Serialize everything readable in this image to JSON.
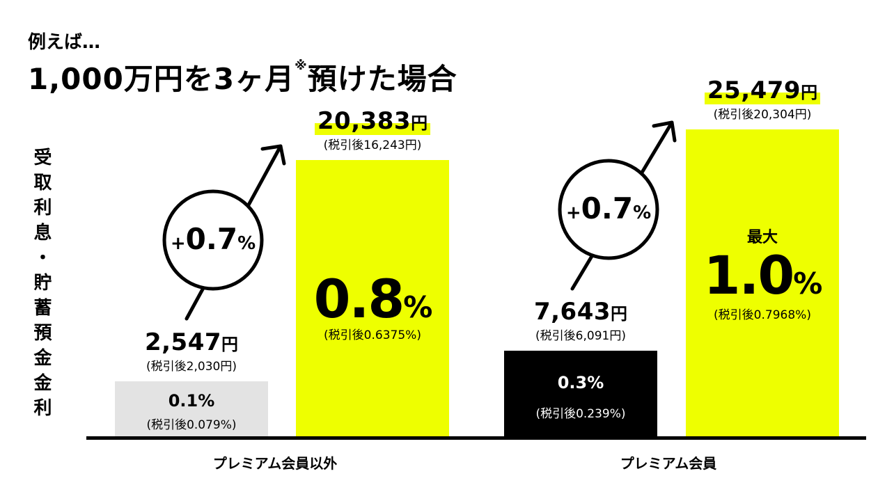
{
  "header": {
    "subtitle": "例えば…",
    "title_main": "1,000万円を3ヶ月",
    "title_note_mark": "※",
    "title_end": "預けた場合"
  },
  "y_axis_label": "受取利息・貯蓄預金金利",
  "colors": {
    "gray_bar": "#e3e3e3",
    "yellow_bar": "#eeff00",
    "black_bar": "#000000",
    "highlight": "#eeff00"
  },
  "chart_data": {
    "type": "bar",
    "categories": [
      "プレミアム会員以外",
      "プレミアム会員"
    ],
    "ylim": [
      0,
      1.0
    ],
    "grid": false,
    "bars": [
      {
        "group": "プレミアム会員以外",
        "rate": 0.1,
        "rate_label": "0.1%",
        "rate_after_tax_label": "(税引後0.079%)",
        "interest_num": "2,547",
        "interest_after_tax_label": "(税引後2,030円)",
        "color": "#e3e3e3",
        "prefix": ""
      },
      {
        "group": "プレミアム会員以外",
        "rate": 0.8,
        "rate_label": "0.8",
        "rate_after_tax_label": "(税引後0.6375%)",
        "interest_num": "20,383",
        "interest_after_tax_label": "(税引後16,243円)",
        "color": "#eeff00",
        "prefix": ""
      },
      {
        "group": "プレミアム会員",
        "rate": 0.3,
        "rate_label": "0.3%",
        "rate_after_tax_label": "(税引後0.239%)",
        "interest_num": "7,643",
        "interest_after_tax_label": "(税引後6,091円)",
        "color": "#000000",
        "prefix": ""
      },
      {
        "group": "プレミアム会員",
        "rate": 1.0,
        "rate_label": "1.0",
        "rate_after_tax_label": "(税引後0.7968%)",
        "interest_num": "25,479",
        "interest_after_tax_label": "(税引後20,304円)",
        "color": "#eeff00",
        "prefix": "最大"
      }
    ],
    "yen_unit": "円",
    "percent_unit": "%",
    "annotations": [
      {
        "plus": "+",
        "value": "0.7",
        "unit": "%"
      },
      {
        "plus": "+",
        "value": "0.7",
        "unit": "%"
      }
    ]
  }
}
